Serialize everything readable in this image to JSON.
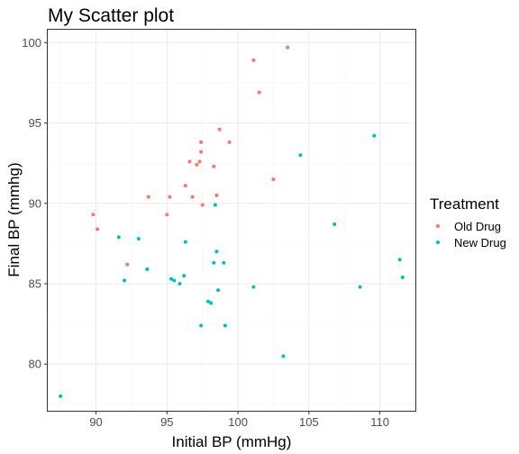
{
  "chart_data": {
    "type": "scatter",
    "title": "My Scatter plot",
    "xlabel": "Initial BP (mmHg)",
    "ylabel": "Final BP (mmhg)",
    "xlim": [
      86.6,
      112.5
    ],
    "ylim": [
      77.1,
      100.8
    ],
    "xticks": [
      90,
      95,
      100,
      105,
      110
    ],
    "yticks": [
      80,
      85,
      90,
      95,
      100
    ],
    "grid": true,
    "legend": {
      "title": "Treatment",
      "position": "right"
    },
    "series": [
      {
        "name": "Old Drug",
        "color": "#F8766D",
        "points": [
          [
            89.8,
            89.3
          ],
          [
            90.1,
            88.4
          ],
          [
            92.2,
            86.2
          ],
          [
            93.7,
            90.4
          ],
          [
            95.0,
            89.3
          ],
          [
            95.2,
            90.4
          ],
          [
            96.3,
            91.1
          ],
          [
            96.6,
            92.6
          ],
          [
            96.8,
            90.4
          ],
          [
            97.1,
            92.4
          ],
          [
            97.3,
            92.6
          ],
          [
            97.4,
            93.8
          ],
          [
            97.4,
            93.2
          ],
          [
            97.5,
            89.9
          ],
          [
            98.3,
            92.3
          ],
          [
            98.5,
            90.5
          ],
          [
            98.7,
            94.6
          ],
          [
            99.4,
            93.8
          ],
          [
            101.1,
            98.9
          ],
          [
            101.5,
            96.9
          ],
          [
            102.5,
            91.5
          ],
          [
            103.5,
            99.7
          ]
        ]
      },
      {
        "name": "New Drug",
        "color": "#00BFC4",
        "points": [
          [
            87.5,
            78.0
          ],
          [
            91.6,
            87.9
          ],
          [
            92.0,
            85.2
          ],
          [
            93.0,
            87.8
          ],
          [
            93.6,
            85.9
          ],
          [
            95.3,
            85.3
          ],
          [
            95.5,
            85.2
          ],
          [
            95.9,
            85.0
          ],
          [
            96.2,
            85.5
          ],
          [
            96.3,
            87.6
          ],
          [
            97.4,
            82.4
          ],
          [
            97.9,
            83.9
          ],
          [
            98.1,
            83.8
          ],
          [
            98.3,
            86.3
          ],
          [
            98.4,
            89.9
          ],
          [
            98.5,
            87.0
          ],
          [
            98.6,
            84.6
          ],
          [
            99.0,
            86.3
          ],
          [
            99.1,
            82.4
          ],
          [
            101.1,
            84.8
          ],
          [
            103.2,
            80.5
          ],
          [
            104.4,
            93.0
          ],
          [
            106.8,
            88.7
          ],
          [
            108.6,
            84.8
          ],
          [
            109.6,
            94.2
          ],
          [
            111.4,
            86.5
          ],
          [
            111.6,
            85.4
          ]
        ]
      }
    ]
  }
}
